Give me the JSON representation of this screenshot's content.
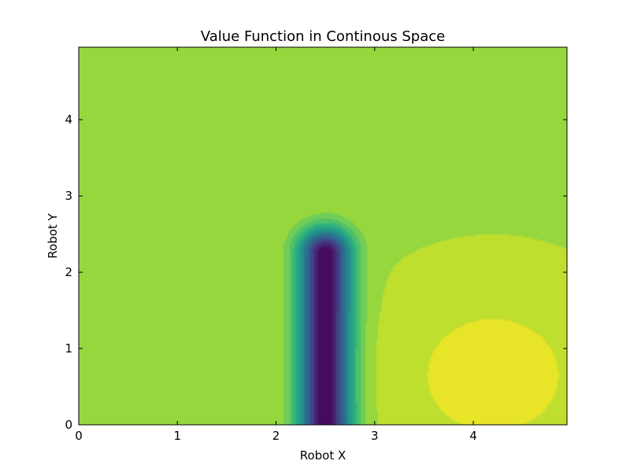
{
  "chart_data": {
    "type": "heatmap",
    "subtype": "filled-contour",
    "title": "Value Function in Continous Space",
    "xlabel": "Robot X",
    "ylabel": "Robot Y",
    "xlim": [
      0,
      4.95
    ],
    "ylim": [
      0,
      4.95
    ],
    "x_ticks": [
      0,
      1,
      2,
      3,
      4
    ],
    "y_ticks": [
      0,
      1,
      2,
      3,
      4
    ],
    "x_tick_labels": [
      "0",
      "1",
      "2",
      "3",
      "4"
    ],
    "y_tick_labels": [
      "0",
      "1",
      "2",
      "3",
      "4"
    ],
    "grid": false,
    "legend": "none",
    "colormap": "viridis",
    "colors": {
      "background_level": "#addc30",
      "min_level": "#440154",
      "max_level": "#f4e61e"
    },
    "features": [
      {
        "name": "trough",
        "x_center": 2.5,
        "x_halfwidth": 0.5,
        "y_from": 0,
        "y_to": 2.6,
        "level": "minimum"
      },
      {
        "name": "peak",
        "x_center": 4.2,
        "y_center": 0.65,
        "level": "maximum"
      }
    ]
  }
}
